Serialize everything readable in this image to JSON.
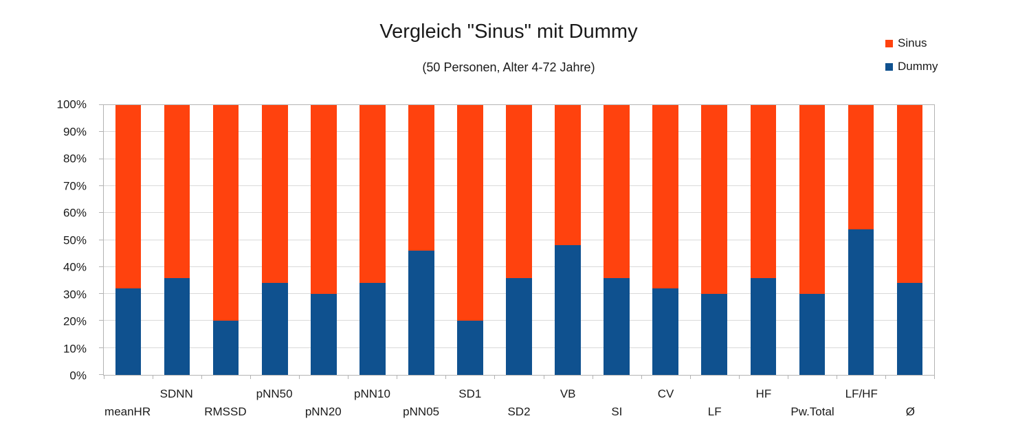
{
  "chart_data": {
    "type": "bar",
    "stacked": true,
    "percent_stacked": true,
    "title": "Vergleich \"Sinus\" mit Dummy",
    "subtitle": "(50 Personen, Alter 4-72 Jahre)",
    "categories": [
      "meanHR",
      "SDNN",
      "RMSSD",
      "pNN50",
      "pNN20",
      "pNN10",
      "pNN05",
      "SD1",
      "SD2",
      "VB",
      "SI",
      "CV",
      "LF",
      "HF",
      "Pw.Total",
      "LF/HF",
      "Ø"
    ],
    "series": [
      {
        "name": "Dummy",
        "color": "#0F518F",
        "values": [
          32,
          36,
          20,
          34,
          30,
          34,
          46,
          20,
          36,
          48,
          36,
          32,
          30,
          36,
          30,
          54,
          34
        ]
      },
      {
        "name": "Sinus",
        "color": "#FF420E",
        "values": [
          68,
          64,
          80,
          66,
          70,
          66,
          54,
          80,
          64,
          52,
          64,
          68,
          70,
          64,
          70,
          46,
          66
        ]
      }
    ],
    "ylim": [
      0,
      100
    ],
    "ytick_step": 10,
    "ytick_labels": [
      "0%",
      "10%",
      "20%",
      "30%",
      "40%",
      "50%",
      "60%",
      "70%",
      "80%",
      "90%",
      "100%"
    ],
    "xlabel": "",
    "ylabel": "",
    "grid": true,
    "legend_position": "top-right",
    "legend": [
      {
        "label": "Sinus",
        "color": "#FF420E"
      },
      {
        "label": "Dummy",
        "color": "#0F518F"
      }
    ]
  }
}
